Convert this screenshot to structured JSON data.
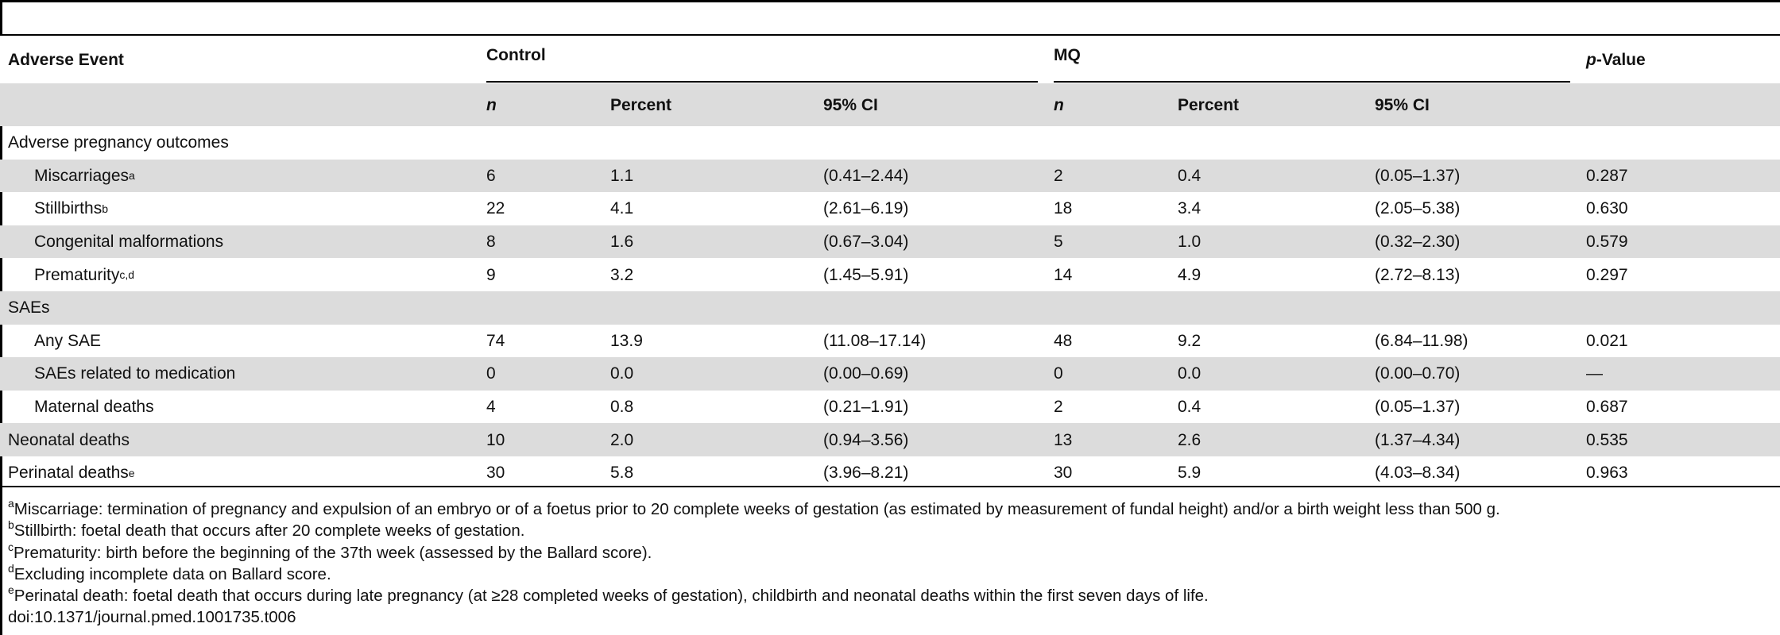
{
  "table": {
    "header": {
      "adverse_event": "Adverse Event",
      "group_control": "Control",
      "group_mq": "MQ",
      "p_italic": "p",
      "p_rest": "-Value",
      "sub_n": "n",
      "sub_percent": "Percent",
      "sub_ci": "95% CI"
    },
    "rows": [
      {
        "label": "Adverse pregnancy outcomes",
        "sup": "",
        "indent": false,
        "shaded": false,
        "cells": [
          "",
          "",
          "",
          "",
          "",
          "",
          ""
        ]
      },
      {
        "label": "Miscarriages",
        "sup": "a",
        "indent": true,
        "shaded": true,
        "cells": [
          "6",
          "1.1",
          "(0.41–2.44)",
          "2",
          "0.4",
          "(0.05–1.37)",
          "0.287"
        ]
      },
      {
        "label": "Stillbirths",
        "sup": "b",
        "indent": true,
        "shaded": false,
        "cells": [
          "22",
          "4.1",
          "(2.61–6.19)",
          "18",
          "3.4",
          "(2.05–5.38)",
          "0.630"
        ]
      },
      {
        "label": "Congenital malformations",
        "sup": "",
        "indent": true,
        "shaded": true,
        "cells": [
          "8",
          "1.6",
          "(0.67–3.04)",
          "5",
          "1.0",
          "(0.32–2.30)",
          "0.579"
        ]
      },
      {
        "label": "Prematurity",
        "sup": "c,d",
        "indent": true,
        "shaded": false,
        "cells": [
          "9",
          "3.2",
          "(1.45–5.91)",
          "14",
          "4.9",
          "(2.72–8.13)",
          "0.297"
        ]
      },
      {
        "label": "SAEs",
        "sup": "",
        "indent": false,
        "shaded": true,
        "cells": [
          "",
          "",
          "",
          "",
          "",
          "",
          ""
        ]
      },
      {
        "label": "Any SAE",
        "sup": "",
        "indent": true,
        "shaded": false,
        "cells": [
          "74",
          "13.9",
          "(11.08–17.14)",
          "48",
          "9.2",
          "(6.84–11.98)",
          "0.021"
        ]
      },
      {
        "label": "SAEs related to medication",
        "sup": "",
        "indent": true,
        "shaded": true,
        "cells": [
          "0",
          "0.0",
          "(0.00–0.69)",
          "0",
          "0.0",
          "(0.00–0.70)",
          "—"
        ]
      },
      {
        "label": "Maternal deaths",
        "sup": "",
        "indent": true,
        "shaded": false,
        "cells": [
          "4",
          "0.8",
          "(0.21–1.91)",
          "2",
          "0.4",
          "(0.05–1.37)",
          "0.687"
        ]
      },
      {
        "label": "Neonatal deaths",
        "sup": "",
        "indent": false,
        "shaded": true,
        "cells": [
          "10",
          "2.0",
          "(0.94–3.56)",
          "13",
          "2.6",
          "(1.37–4.34)",
          "0.535"
        ]
      },
      {
        "label": "Perinatal deaths",
        "sup": "e",
        "indent": false,
        "shaded": false,
        "cells": [
          "30",
          "5.8",
          "(3.96–8.21)",
          "30",
          "5.9",
          "(4.03–8.34)",
          "0.963"
        ]
      }
    ]
  },
  "footnotes": [
    {
      "sup": "a",
      "text": "Miscarriage: termination of pregnancy and expulsion of an embryo or of a foetus prior to 20 complete weeks of gestation (as estimated by measurement of fundal height) and/or a birth weight less than 500 g."
    },
    {
      "sup": "b",
      "text": "Stillbirth: foetal death that occurs after 20 complete weeks of gestation."
    },
    {
      "sup": "c",
      "text": "Prematurity: birth before the beginning of the 37th week (assessed by the Ballard score)."
    },
    {
      "sup": "d",
      "text": "Excluding incomplete data on Ballard score."
    },
    {
      "sup": "e",
      "text": "Perinatal death: foetal death that occurs during late pregnancy (at ≥28 completed weeks of gestation), childbirth and neonatal deaths within the first seven days of life."
    },
    {
      "sup": "",
      "text": "doi:10.1371/journal.pmed.1001735.t006"
    }
  ]
}
